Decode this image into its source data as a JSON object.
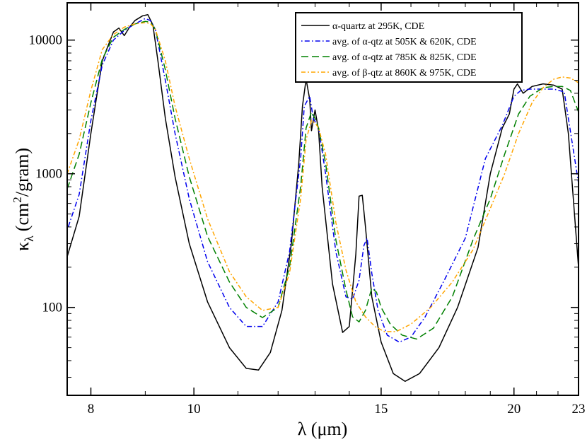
{
  "chart_data": {
    "type": "line",
    "title": "",
    "xlabel": "λ (μm)",
    "ylabel": "κλ (cm²/gram)",
    "xscale": "log",
    "yscale": "log",
    "xlim": [
      7.6,
      23
    ],
    "ylim": [
      22,
      19000
    ],
    "grid": false,
    "legend_position": "top-right",
    "xticks": [
      {
        "value": 8,
        "label": "8"
      },
      {
        "value": 10,
        "label": "10"
      },
      {
        "value": 15,
        "label": "15"
      },
      {
        "value": 20,
        "label": "20"
      },
      {
        "value": 23,
        "label": "23"
      }
    ],
    "yticks": [
      {
        "value": 100,
        "label": "100"
      },
      {
        "value": 1000,
        "label": "1000"
      },
      {
        "value": 10000,
        "label": "10000"
      }
    ],
    "y_label_parts": {
      "kappa": "κ",
      "sub": "λ",
      "pre": "(cm",
      "sup": "2",
      "post": "/gram)"
    },
    "series": [
      {
        "name": "α-quartz at 295K, CDE",
        "color": "#000000",
        "dash": "",
        "x": [
          7.6,
          7.8,
          8.0,
          8.2,
          8.4,
          8.5,
          8.6,
          8.7,
          8.8,
          8.95,
          9.05,
          9.15,
          9.25,
          9.4,
          9.6,
          9.9,
          10.3,
          10.8,
          11.2,
          11.5,
          11.8,
          12.1,
          12.35,
          12.55,
          12.65,
          12.75,
          12.85,
          12.9,
          13.0,
          13.1,
          13.2,
          13.5,
          13.8,
          14.0,
          14.2,
          14.3,
          14.4,
          14.5,
          14.7,
          15.0,
          15.4,
          15.8,
          16.3,
          17.0,
          17.7,
          18.5,
          19.0,
          19.5,
          19.8,
          20.0,
          20.15,
          20.4,
          20.8,
          21.3,
          21.8,
          22.2,
          22.5,
          23.0
        ],
        "values": [
          240,
          480,
          2000,
          7000,
          11500,
          12300,
          10800,
          12500,
          14000,
          15200,
          15500,
          13000,
          7000,
          2600,
          950,
          300,
          110,
          50,
          35,
          34,
          46,
          95,
          300,
          1200,
          3200,
          5100,
          3600,
          2100,
          3000,
          2100,
          800,
          150,
          65,
          72,
          250,
          680,
          690,
          400,
          120,
          55,
          32,
          28,
          32,
          50,
          100,
          280,
          1000,
          2200,
          2800,
          4300,
          4700,
          4000,
          4500,
          4700,
          4600,
          4300,
          2000,
          200
        ]
      },
      {
        "name": "avg. of α-qtz at 505K & 620K, CDE",
        "color": "#0000ee",
        "dash": "1.6 3.2 7 3.2",
        "x": [
          7.6,
          7.8,
          8.0,
          8.2,
          8.4,
          8.6,
          8.8,
          9.0,
          9.1,
          9.2,
          9.4,
          9.6,
          9.9,
          10.3,
          10.8,
          11.2,
          11.6,
          12.0,
          12.3,
          12.6,
          12.7,
          12.85,
          12.95,
          13.1,
          13.3,
          13.6,
          13.9,
          14.1,
          14.3,
          14.45,
          14.55,
          14.7,
          14.9,
          15.2,
          15.6,
          16.0,
          16.5,
          17.2,
          18.0,
          18.8,
          19.5,
          20.0,
          20.3,
          20.7,
          21.2,
          21.8,
          22.3,
          23.0
        ],
        "values": [
          380,
          700,
          2500,
          6500,
          10000,
          11800,
          13200,
          14500,
          14000,
          12000,
          5000,
          2000,
          650,
          220,
          100,
          72,
          72,
          110,
          260,
          1300,
          3200,
          3800,
          2600,
          2200,
          1000,
          260,
          120,
          115,
          160,
          290,
          330,
          180,
          95,
          62,
          55,
          60,
          85,
          160,
          330,
          1300,
          2300,
          3800,
          4200,
          4300,
          4300,
          4300,
          4100,
          850
        ]
      },
      {
        "name": "avg. of α-qtz at 785K & 825K, CDE",
        "color": "#008000",
        "dash": "10 5",
        "x": [
          7.6,
          7.8,
          8.0,
          8.2,
          8.4,
          8.6,
          8.8,
          9.0,
          9.1,
          9.2,
          9.4,
          9.6,
          9.9,
          10.3,
          10.8,
          11.2,
          11.6,
          12.0,
          12.3,
          12.6,
          12.75,
          12.9,
          13.0,
          13.1,
          13.3,
          13.6,
          13.9,
          14.1,
          14.3,
          14.5,
          14.7,
          14.85,
          15.0,
          15.3,
          15.7,
          16.2,
          16.8,
          17.5,
          18.3,
          19.0,
          19.6,
          20.2,
          20.7,
          21.3,
          21.8,
          22.2,
          22.6,
          23.0
        ],
        "values": [
          770,
          1400,
          3400,
          7200,
          10500,
          12000,
          13200,
          13800,
          13600,
          12000,
          6000,
          2600,
          950,
          340,
          155,
          100,
          84,
          100,
          200,
          800,
          2200,
          2900,
          2600,
          2200,
          1200,
          320,
          135,
          85,
          78,
          95,
          140,
          130,
          100,
          75,
          62,
          58,
          70,
          120,
          320,
          650,
          1400,
          2800,
          3800,
          4400,
          4500,
          4500,
          4200,
          2900
        ]
      },
      {
        "name": "avg. of β-qtz at 860K & 975K, CDE",
        "color": "#ffa500",
        "dash": "6 3 2 3",
        "x": [
          7.6,
          7.8,
          8.0,
          8.2,
          8.4,
          8.6,
          8.8,
          9.0,
          9.1,
          9.2,
          9.4,
          9.6,
          9.9,
          10.3,
          10.8,
          11.2,
          11.6,
          12.0,
          12.3,
          12.6,
          12.75,
          12.9,
          13.0,
          13.1,
          13.3,
          13.6,
          13.9,
          14.2,
          14.5,
          14.8,
          15.1,
          15.5,
          16.0,
          16.7,
          17.5,
          18.3,
          19.0,
          19.6,
          20.2,
          20.8,
          21.3,
          21.8,
          22.2,
          22.6,
          23.0
        ],
        "values": [
          1000,
          1800,
          4200,
          8500,
          11000,
          12500,
          13200,
          13500,
          13300,
          12000,
          7000,
          3200,
          1300,
          460,
          185,
          120,
          95,
          100,
          180,
          650,
          1800,
          2500,
          2400,
          2200,
          1400,
          430,
          190,
          110,
          85,
          72,
          66,
          66,
          75,
          100,
          155,
          270,
          550,
          1000,
          2000,
          3400,
          4400,
          5100,
          5300,
          5200,
          4800
        ]
      }
    ]
  }
}
